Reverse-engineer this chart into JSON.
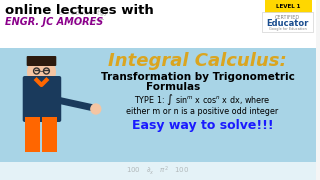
{
  "bg_color": "#f5f5f5",
  "top_bar_color": "#ffffff",
  "content_bg_color": "#add8e6",
  "title_text": "Integral Calculus:",
  "title_color": "#DAA520",
  "subtitle1": "Transformation by Trigonometric",
  "subtitle2": "Formulas",
  "type_line": "TYPE 1: ∫ sinᵐ x cosⁿ x dx, where",
  "detail_line": "either m or n is a positive odd integer",
  "easy_text": "Easy way to solve!!!",
  "easy_color": "#1a1aff",
  "top_text1": "online lectures with",
  "top_text1_color": "#000000",
  "top_text2": "ENGR. JC AMORES",
  "top_text2_color": "#8B008B",
  "educator_bg": "#FFD700",
  "educator_text": "CERTIFIED\nEducator",
  "figure_width": 3.2,
  "figure_height": 1.8
}
